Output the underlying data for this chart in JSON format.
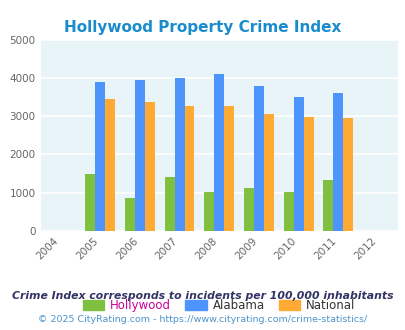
{
  "title": "Hollywood Property Crime Index",
  "years": [
    2004,
    2005,
    2006,
    2007,
    2008,
    2009,
    2010,
    2011,
    2012
  ],
  "data_years": [
    2005,
    2006,
    2007,
    2008,
    2009,
    2010,
    2011
  ],
  "hollywood": [
    1500,
    850,
    1400,
    1020,
    1120,
    1010,
    1320
  ],
  "alabama": [
    3900,
    3950,
    4000,
    4100,
    3780,
    3510,
    3610
  ],
  "national": [
    3450,
    3360,
    3270,
    3270,
    3060,
    2980,
    2950
  ],
  "bar_colors": {
    "hollywood": "#80c040",
    "alabama": "#4d94ff",
    "national": "#ffaa33"
  },
  "legend_labels": [
    "Hollywood",
    "Alabama",
    "National"
  ],
  "legend_text_colors": [
    "#cc0099",
    "#333333",
    "#333333"
  ],
  "ylim": [
    0,
    5000
  ],
  "yticks": [
    0,
    1000,
    2000,
    3000,
    4000,
    5000
  ],
  "xlim": [
    2003.5,
    2012.5
  ],
  "plot_bg_color": "#e8f4f8",
  "grid_color": "#ffffff",
  "footnote1": "Crime Index corresponds to incidents per 100,000 inhabitants",
  "footnote2": "© 2025 CityRating.com - https://www.cityrating.com/crime-statistics/",
  "title_color": "#1a8ccc",
  "footnote1_color": "#333366",
  "footnote2_color": "#4d94cc",
  "bar_width": 0.25
}
